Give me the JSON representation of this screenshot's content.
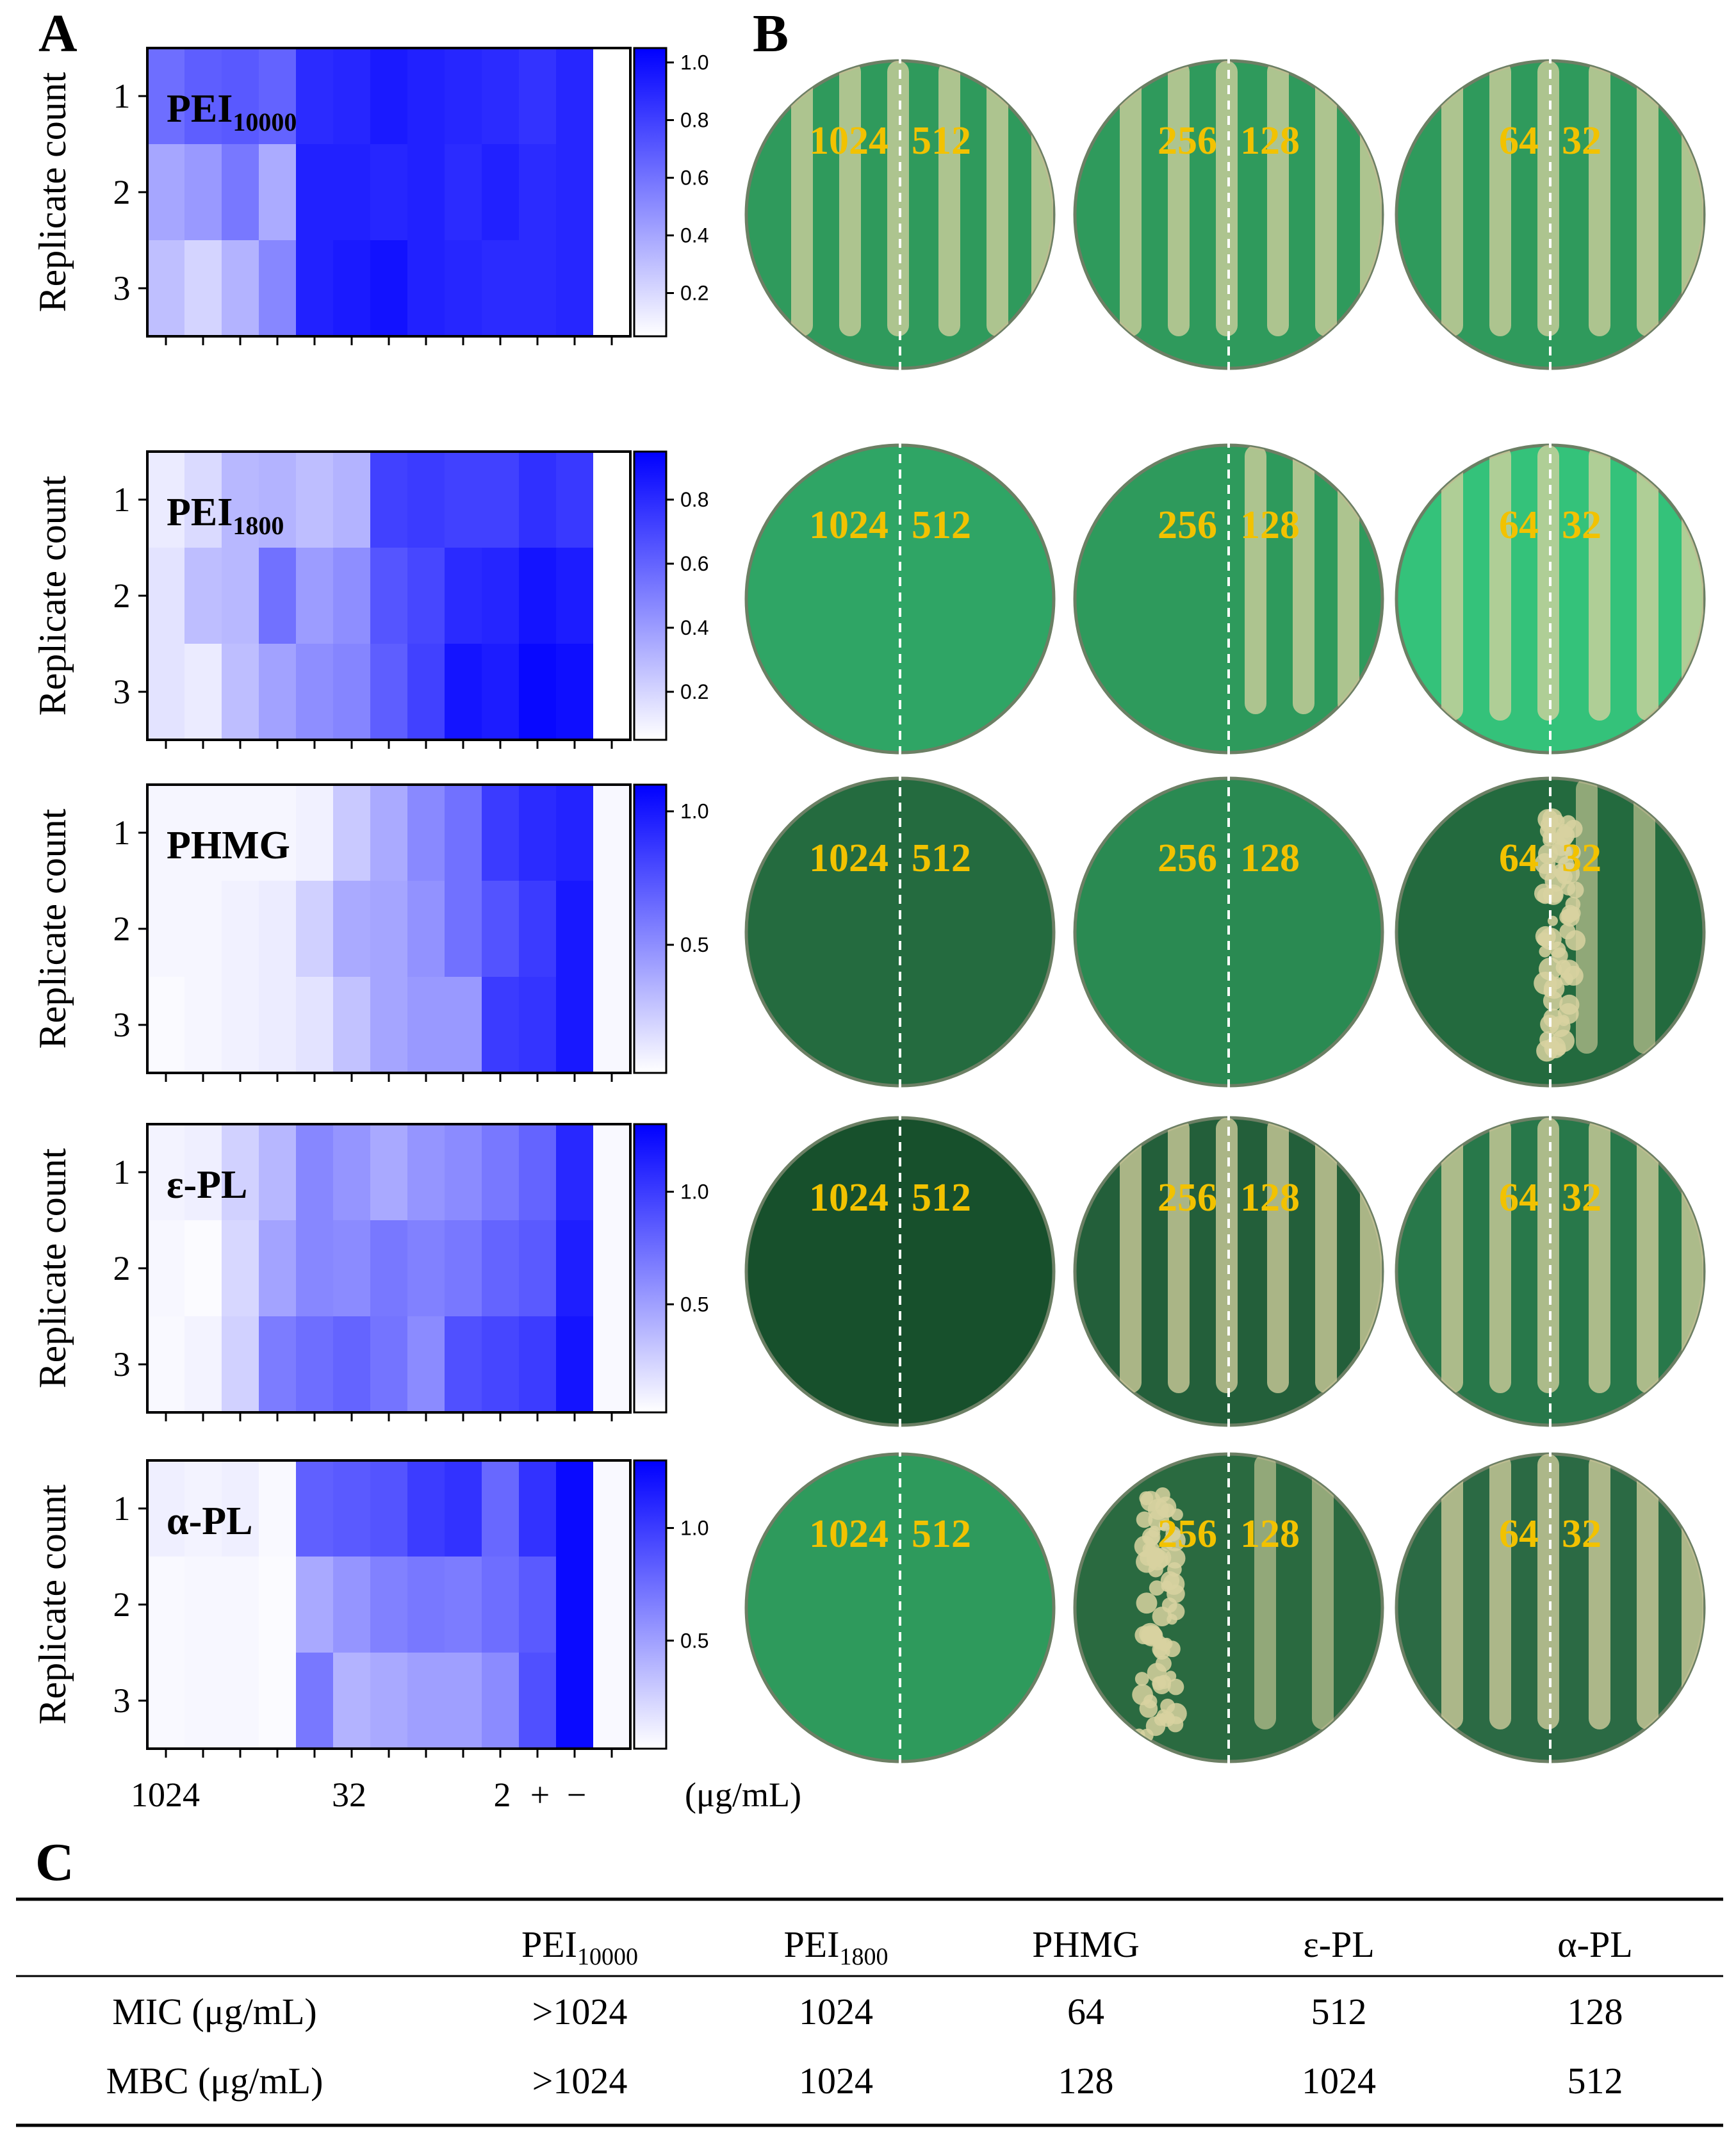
{
  "panels": {
    "a": "A",
    "b": "B",
    "c": "C"
  },
  "y_axis_label": "Replicate count",
  "replicates": [
    "1",
    "2",
    "3"
  ],
  "x_tick_labels": [
    "1024",
    "32",
    "2",
    "+",
    "−"
  ],
  "unit_label": "(μg/mL)",
  "chart_data": [
    {
      "type": "heatmap",
      "sample_main": "PEI",
      "sample_sub": "10000",
      "colorbar_ticks": [
        0.2,
        0.4,
        0.6,
        0.8,
        1.0
      ],
      "colorbar_range": [
        0.05,
        1.05
      ],
      "values": [
        [
          0.62,
          0.68,
          0.7,
          0.66,
          0.88,
          0.9,
          0.95,
          0.92,
          0.9,
          0.88,
          0.85,
          0.9,
          0.05
        ],
        [
          0.4,
          0.45,
          0.58,
          0.38,
          0.92,
          0.92,
          0.9,
          0.92,
          0.88,
          0.92,
          0.88,
          0.9,
          0.05
        ],
        [
          0.3,
          0.22,
          0.35,
          0.52,
          0.92,
          0.95,
          0.98,
          0.92,
          0.9,
          0.88,
          0.88,
          0.9,
          0.05
        ]
      ]
    },
    {
      "type": "heatmap",
      "sample_main": "PEI",
      "sample_sub": "1800",
      "colorbar_ticks": [
        0.2,
        0.4,
        0.6,
        0.8
      ],
      "colorbar_range": [
        0.05,
        0.95
      ],
      "values": [
        [
          0.12,
          0.18,
          0.3,
          0.32,
          0.28,
          0.32,
          0.72,
          0.74,
          0.72,
          0.72,
          0.78,
          0.75,
          0.05
        ],
        [
          0.15,
          0.28,
          0.3,
          0.55,
          0.4,
          0.45,
          0.65,
          0.7,
          0.8,
          0.82,
          0.88,
          0.85,
          0.05
        ],
        [
          0.15,
          0.12,
          0.28,
          0.38,
          0.45,
          0.48,
          0.62,
          0.72,
          0.88,
          0.85,
          0.92,
          0.9,
          0.05
        ]
      ]
    },
    {
      "type": "heatmap",
      "sample_main": "PHMG",
      "sample_sub": "",
      "colorbar_ticks": [
        0.5,
        1.0
      ],
      "colorbar_range": [
        0.02,
        1.1
      ],
      "values": [
        [
          0.06,
          0.06,
          0.06,
          0.06,
          0.08,
          0.25,
          0.38,
          0.52,
          0.62,
          0.85,
          0.92,
          0.95,
          0.05
        ],
        [
          0.06,
          0.06,
          0.08,
          0.1,
          0.22,
          0.38,
          0.4,
          0.48,
          0.62,
          0.75,
          0.85,
          1.0,
          0.05
        ],
        [
          0.04,
          0.06,
          0.08,
          0.1,
          0.14,
          0.28,
          0.4,
          0.45,
          0.45,
          0.85,
          0.88,
          1.0,
          0.05
        ]
      ]
    },
    {
      "type": "heatmap",
      "sample_main": "ε-PL",
      "sample_sub": "",
      "colorbar_ticks": [
        0.5,
        1.0
      ],
      "colorbar_range": [
        0.02,
        1.3
      ],
      "values": [
        [
          0.08,
          0.1,
          0.25,
          0.38,
          0.62,
          0.55,
          0.45,
          0.55,
          0.6,
          0.7,
          0.8,
          1.1,
          0.05
        ],
        [
          0.06,
          0.04,
          0.22,
          0.48,
          0.62,
          0.6,
          0.7,
          0.65,
          0.7,
          0.8,
          0.85,
          1.15,
          0.05
        ],
        [
          0.05,
          0.08,
          0.25,
          0.68,
          0.75,
          0.8,
          0.72,
          0.6,
          0.9,
          0.95,
          1.0,
          1.2,
          0.05
        ]
      ]
    },
    {
      "type": "heatmap",
      "sample_main": "α-PL",
      "sample_sub": "",
      "colorbar_ticks": [
        0.5,
        1.0
      ],
      "colorbar_range": [
        0.02,
        1.3
      ],
      "values": [
        [
          0.1,
          0.08,
          0.1,
          0.05,
          0.82,
          0.85,
          0.88,
          1.0,
          1.05,
          0.78,
          1.05,
          1.25,
          0.05
        ],
        [
          0.05,
          0.06,
          0.06,
          0.04,
          0.45,
          0.55,
          0.65,
          0.7,
          0.68,
          0.75,
          0.85,
          1.25,
          0.05
        ],
        [
          0.05,
          0.06,
          0.06,
          0.04,
          0.7,
          0.4,
          0.45,
          0.5,
          0.5,
          0.6,
          0.9,
          1.25,
          0.05
        ]
      ]
    }
  ],
  "plates": [
    [
      {
        "left": "1024",
        "right": "512",
        "agar": "#2f9a5c",
        "growth": "heavy"
      },
      {
        "left": "256",
        "right": "128",
        "agar": "#2f9a5c",
        "growth": "heavy"
      },
      {
        "left": "64",
        "right": "32",
        "agar": "#2f9a5c",
        "growth": "heavy"
      }
    ],
    [
      {
        "left": "1024",
        "right": "512",
        "agar": "#2fa565",
        "growth": "none"
      },
      {
        "left": "256",
        "right": "128",
        "agar": "#2e9a5c",
        "growth": "half"
      },
      {
        "left": "64",
        "right": "32",
        "agar": "#34c27a",
        "growth": "heavy"
      }
    ],
    [
      {
        "left": "1024",
        "right": "512",
        "agar": "#246b3f",
        "growth": "none"
      },
      {
        "left": "256",
        "right": "128",
        "agar": "#2a8a52",
        "growth": "none"
      },
      {
        "left": "64",
        "right": "32",
        "agar": "#236a3e",
        "growth": "colonies"
      }
    ],
    [
      {
        "left": "1024",
        "right": "512",
        "agar": "#17502c",
        "growth": "none"
      },
      {
        "left": "256",
        "right": "128",
        "agar": "#235f3a",
        "growth": "heavy"
      },
      {
        "left": "64",
        "right": "32",
        "agar": "#28784a",
        "growth": "heavy"
      }
    ],
    [
      {
        "left": "1024",
        "right": "512",
        "agar": "#2e9a5c",
        "growth": "none"
      },
      {
        "left": "256",
        "right": "128",
        "agar": "#2a6a40",
        "growth": "colonies"
      },
      {
        "left": "64",
        "right": "32",
        "agar": "#2b6a44",
        "growth": "heavy"
      }
    ]
  ],
  "table": {
    "columns": [
      {
        "main": "PEI",
        "sub": "10000"
      },
      {
        "main": "PEI",
        "sub": "1800"
      },
      {
        "main": "PHMG",
        "sub": ""
      },
      {
        "main": "ε-PL",
        "sub": ""
      },
      {
        "main": "α-PL",
        "sub": ""
      }
    ],
    "rows": [
      {
        "label": "MIC (μg/mL)",
        "values": [
          ">1024",
          "1024",
          "64",
          "512",
          "128"
        ]
      },
      {
        "label": "MBC (μg/mL)",
        "values": [
          ">1024",
          "1024",
          "128",
          "1024",
          "512"
        ]
      }
    ]
  },
  "colors": {
    "heat_high": "#0000ff",
    "heat_low": "#ffffff",
    "plate_label": "#f2c200",
    "growth": "#d8d2a0"
  }
}
